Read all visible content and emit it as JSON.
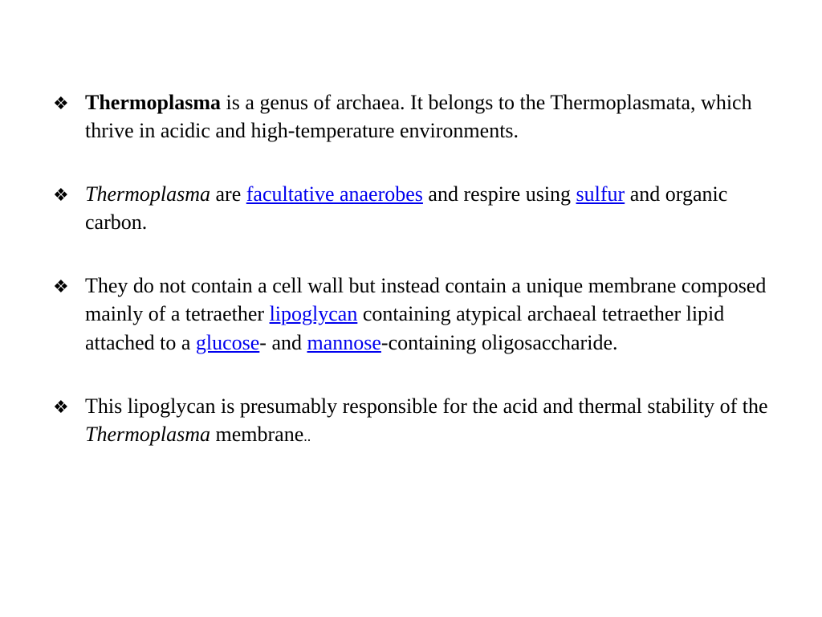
{
  "slide": {
    "background_color": "#ffffff",
    "text_color": "#000000",
    "link_color": "#0000ee",
    "font_family": "Times New Roman",
    "body_fontsize": 26,
    "bullet_glyph": "❖",
    "bullets": [
      {
        "runs": [
          {
            "text": "Thermoplasma",
            "style": "bold"
          },
          {
            "text": " is a genus of archaea. It belongs to the Thermoplasmata, which thrive in acidic and high-temperature environments."
          }
        ]
      },
      {
        "runs": [
          {
            "text": "Thermoplasma",
            "style": "italic"
          },
          {
            "text": " are "
          },
          {
            "text": "facultative anaerobes",
            "style": "link"
          },
          {
            "text": " and respire using "
          },
          {
            "text": "sulfur",
            "style": "link"
          },
          {
            "text": " and organic carbon."
          }
        ]
      },
      {
        "runs": [
          {
            "text": " They do not contain a cell wall but instead contain a unique membrane composed mainly of a tetraether "
          },
          {
            "text": "lipoglycan",
            "style": "link"
          },
          {
            "text": " containing atypical archaeal tetraether lipid attached to a "
          },
          {
            "text": "glucose",
            "style": "link"
          },
          {
            "text": "- and "
          },
          {
            "text": "mannose",
            "style": "link"
          },
          {
            "text": "-containing oligosaccharide."
          }
        ]
      },
      {
        "runs": [
          {
            "text": "This lipoglycan is presumably responsible for the acid and thermal stability of the "
          },
          {
            "text": "Thermoplasma",
            "style": "italic"
          },
          {
            "text": " membrane"
          },
          {
            "text": "..",
            "style": "small"
          }
        ]
      }
    ]
  }
}
